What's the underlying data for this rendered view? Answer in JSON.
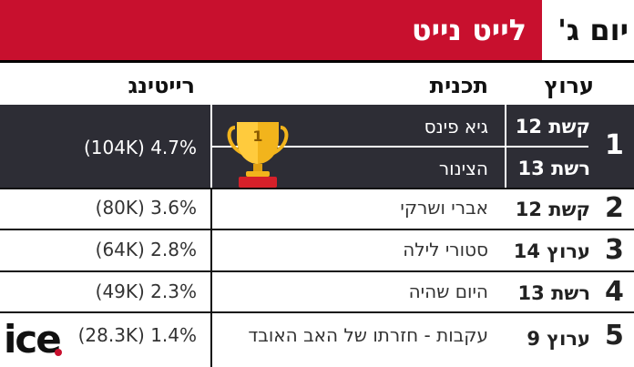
{
  "header": {
    "day": "יום ג'",
    "title": "לייט נייט"
  },
  "columns": {
    "channel": "ערוץ",
    "program": "תכנית",
    "rating": "רייטינג"
  },
  "rows": [
    {
      "rank": "1",
      "entries": [
        {
          "channel": "קשת 12",
          "program": "גיא פינס"
        },
        {
          "channel": "רשת 13",
          "program": "הצינור"
        }
      ],
      "rating": "(104K) 4.7%",
      "trophy_label": "1"
    },
    {
      "rank": "2",
      "channel": "קשת 12",
      "program": "אברי ושרקי",
      "rating": "(80K) 3.6%"
    },
    {
      "rank": "3",
      "channel": "ערוץ 14",
      "program": "סטורי לילה",
      "rating": "(64K) 2.8%"
    },
    {
      "rank": "4",
      "channel": "רשת 13",
      "program": "היום שהיה",
      "rating": "(49K) 2.3%"
    },
    {
      "rank": "5",
      "channel": "ערוץ 9",
      "program": "עקבות - חזרתו של האב האובד",
      "rating": "(28.3K) 1.4%"
    }
  ],
  "logo": {
    "text": "ice",
    "dot_color": "#c8102e"
  },
  "colors": {
    "accent": "#c8102e",
    "highlight_row": "#2d2d35",
    "trophy_gold": "#f2b41c",
    "trophy_base": "#d6202a"
  }
}
